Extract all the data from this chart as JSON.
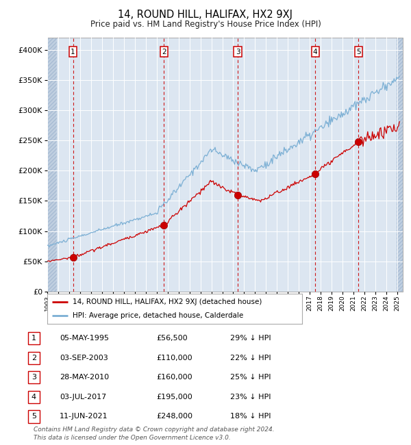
{
  "title": "14, ROUND HILL, HALIFAX, HX2 9XJ",
  "subtitle": "Price paid vs. HM Land Registry's House Price Index (HPI)",
  "legend_red": "14, ROUND HILL, HALIFAX, HX2 9XJ (detached house)",
  "legend_blue": "HPI: Average price, detached house, Calderdale",
  "footer1": "Contains HM Land Registry data © Crown copyright and database right 2024.",
  "footer2": "This data is licensed under the Open Government Licence v3.0.",
  "sale_dates_x": [
    1995.35,
    2003.67,
    2010.41,
    2017.5,
    2021.44
  ],
  "sale_prices_y": [
    56500,
    110000,
    160000,
    195000,
    248000
  ],
  "sale_labels": [
    "1",
    "2",
    "3",
    "4",
    "5"
  ],
  "table_rows": [
    [
      "1",
      "05-MAY-1995",
      "£56,500",
      "29% ↓ HPI"
    ],
    [
      "2",
      "03-SEP-2003",
      "£110,000",
      "22% ↓ HPI"
    ],
    [
      "3",
      "28-MAY-2010",
      "£160,000",
      "25% ↓ HPI"
    ],
    [
      "4",
      "03-JUL-2017",
      "£195,000",
      "23% ↓ HPI"
    ],
    [
      "5",
      "11-JUN-2021",
      "£248,000",
      "18% ↓ HPI"
    ]
  ],
  "xmin": 1993.0,
  "xmax": 2025.5,
  "ymin": 0,
  "ymax": 420000,
  "yticks": [
    0,
    50000,
    100000,
    150000,
    200000,
    250000,
    300000,
    350000,
    400000
  ],
  "ytick_labels": [
    "£0",
    "£50K",
    "£100K",
    "£150K",
    "£200K",
    "£250K",
    "£300K",
    "£350K",
    "£400K"
  ],
  "plot_bg": "#dce6f1",
  "grid_color": "#ffffff",
  "hatch_color": "#c0cfe0",
  "red_line_color": "#cc0000",
  "blue_line_color": "#7bafd4",
  "dot_color": "#cc0000",
  "vline_color": "#cc0000",
  "label_box_color": "#cc0000"
}
